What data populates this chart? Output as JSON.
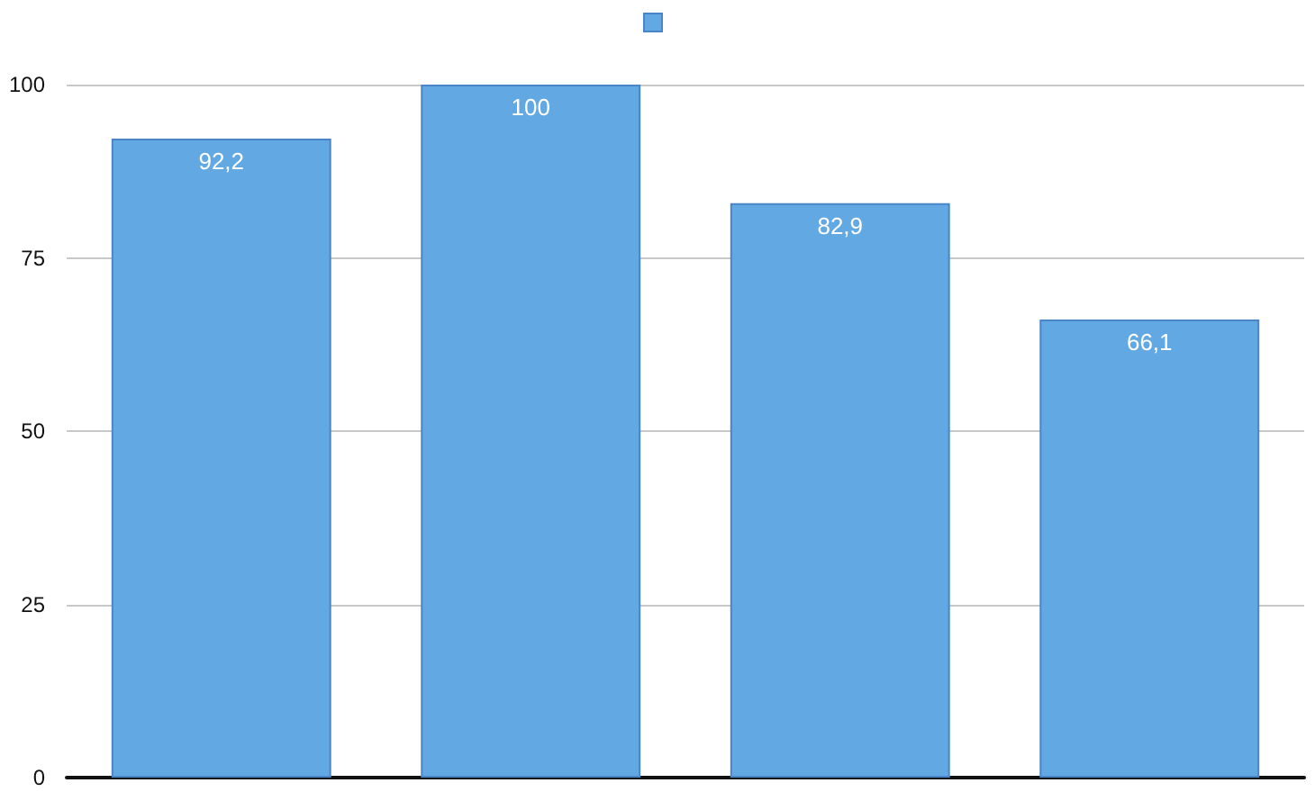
{
  "chart_data": {
    "type": "bar",
    "categories": [
      null,
      null,
      null,
      null
    ],
    "values": [
      92.2,
      100,
      82.9,
      66.1
    ],
    "value_labels": [
      "92,2",
      "100",
      "82,9",
      "66,1"
    ],
    "color": "#62a8e2",
    "ylim": [
      0,
      100
    ],
    "yticks": [
      0,
      25,
      50,
      75,
      100
    ],
    "grid": "y"
  }
}
